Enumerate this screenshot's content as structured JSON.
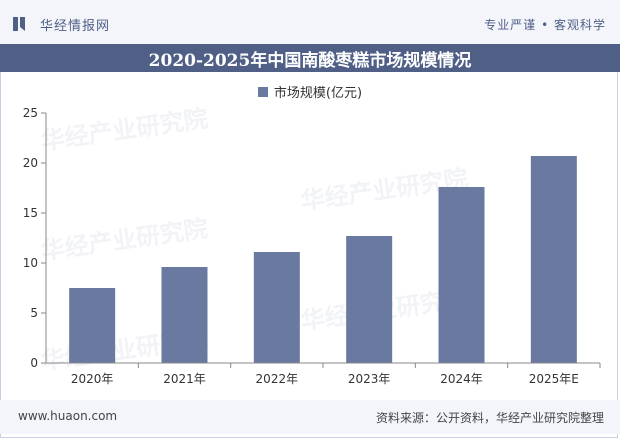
{
  "header": {
    "brand": "华经情报网",
    "tagline": "专业严谨 • 客观科学"
  },
  "footer": {
    "url": "www.huaon.com",
    "source": "资料来源：公开资料，华经产业研究院整理"
  },
  "colors": {
    "bar": "#6a79a0",
    "titlebar": "#4f5f86"
  },
  "chart_data": {
    "type": "bar",
    "title": "2020-2025年中国南酸枣糕市场规模情况",
    "series": [
      {
        "name": "市场规模(亿元)",
        "values": [
          7.5,
          9.6,
          11.1,
          12.7,
          17.6,
          20.7
        ]
      }
    ],
    "categories": [
      "2020年",
      "2021年",
      "2022年",
      "2023年",
      "2024年",
      "2025年E"
    ],
    "yticks": [
      "0",
      "5",
      "10",
      "15",
      "20",
      "25"
    ],
    "ylim": [
      0,
      25
    ],
    "xlabel": "",
    "ylabel": ""
  }
}
